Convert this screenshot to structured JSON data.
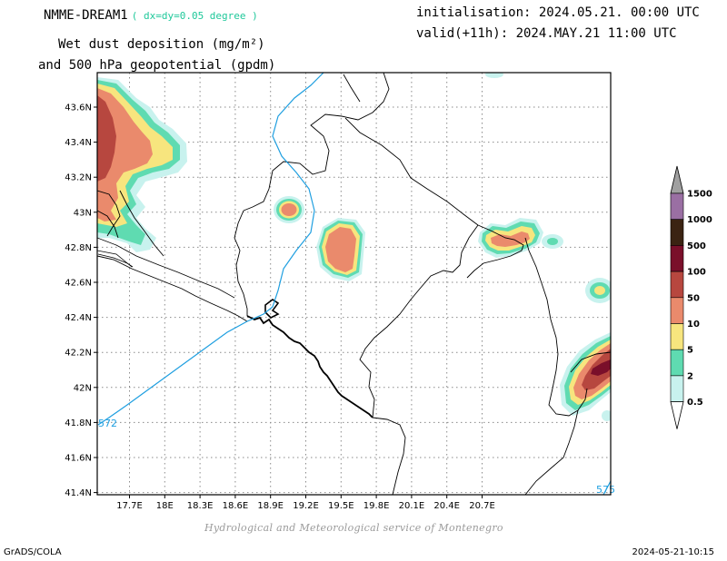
{
  "header": {
    "model": "NMME-DREAM1",
    "resolution": "( dx=dy=0.05 degree )",
    "field_line1": "Wet dust deposition (mg/m²)",
    "field_line2": "and 500 hPa geopotential (gpdm)",
    "init": "initialisation: 2024.05.21. 00:00 UTC",
    "valid": "valid(+11h): 2024.MAY.21 11:00 UTC"
  },
  "map": {
    "lat_labels": [
      "43.6N",
      "43.4N",
      "43.2N",
      "43N",
      "42.8N",
      "42.6N",
      "42.4N",
      "42.2N",
      "42N",
      "41.8N",
      "41.6N",
      "41.4N"
    ],
    "lon_labels": [
      "17.7E",
      "18E",
      "18.3E",
      "18.6E",
      "18.9E",
      "19.2E",
      "19.5E",
      "19.8E",
      "20.1E",
      "20.4E",
      "20.7E"
    ],
    "contour_labels": [
      "572",
      "575"
    ],
    "contour_color": "#1f9fe0"
  },
  "legend": {
    "levels": [
      "1500",
      "1000",
      "500",
      "100",
      "50",
      "10",
      "5",
      "2",
      "0.5"
    ],
    "colors": [
      "#a0a0a0",
      "#9a6fa3",
      "#3b2312",
      "#7a0f2a",
      "#b7473f",
      "#ea8a6c",
      "#f7e57e",
      "#5fdbb1",
      "#c8f2ee",
      "#ffffff"
    ]
  },
  "footer": {
    "credit": "Hydrological and Meteorological service of Montenegro",
    "software": "GrADS/COLA",
    "timestamp": "2024-05-21-10:15"
  }
}
